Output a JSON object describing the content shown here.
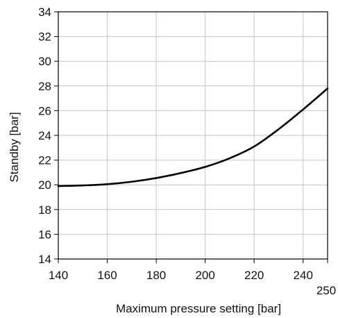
{
  "chart_data": {
    "type": "line",
    "title": "",
    "xlabel": "Maximum pressure setting [bar]",
    "ylabel": "Standby [bar]",
    "xlim": [
      140,
      250
    ],
    "ylim": [
      14,
      34
    ],
    "grid": true,
    "x_ticks": [
      140,
      160,
      180,
      200,
      220,
      240,
      250
    ],
    "y_ticks": [
      14,
      16,
      18,
      20,
      22,
      24,
      26,
      28,
      30,
      32,
      34
    ],
    "series": [
      {
        "x": [
          140,
          150,
          160,
          170,
          180,
          190,
          200,
          210,
          220,
          230,
          240,
          250
        ],
        "values": [
          19.9,
          19.95,
          20.05,
          20.25,
          20.55,
          20.95,
          21.45,
          22.15,
          23.1,
          24.5,
          26.1,
          27.8
        ]
      }
    ]
  }
}
